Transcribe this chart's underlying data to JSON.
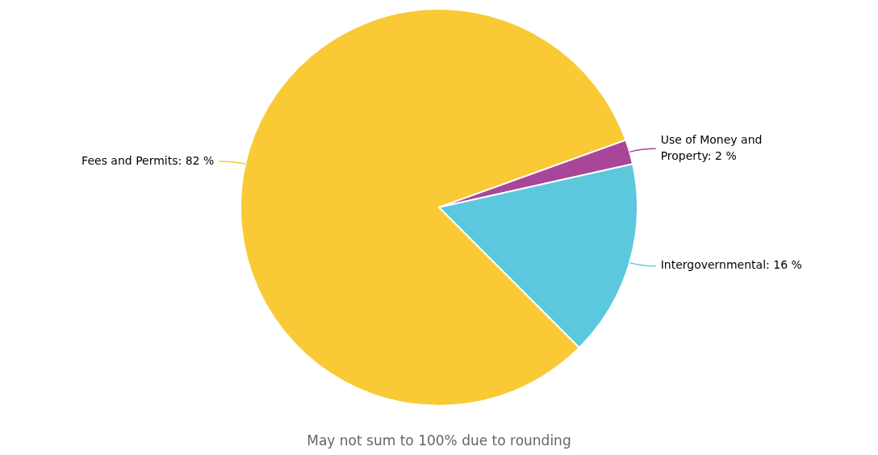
{
  "chart_data": {
    "type": "pie",
    "categories": [
      "Fees and Permits",
      "Use of Money and Property",
      "Intergovernmental"
    ],
    "values": [
      82,
      2,
      16
    ],
    "value_labels": [
      "82 %",
      "2 %",
      "16 %"
    ],
    "colors": [
      "#f9ca35",
      "#a8479a",
      "#5bc8de"
    ],
    "legend": false,
    "annotations": [
      "May not sum to 100% due to rounding"
    ]
  }
}
